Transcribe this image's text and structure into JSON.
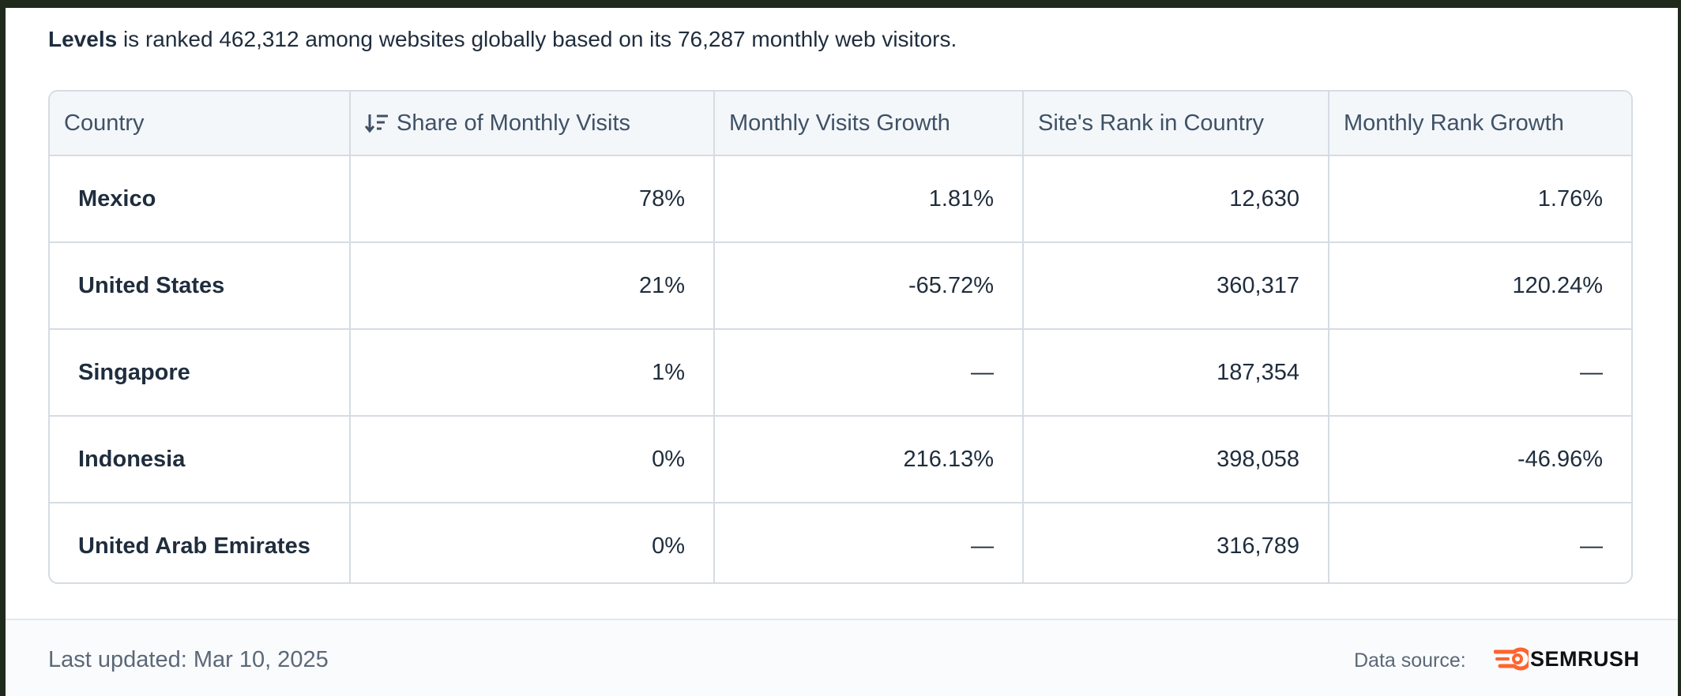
{
  "intro": {
    "site": "Levels",
    "text": "is ranked 462,312 among websites globally based on its 76,287 monthly web visitors."
  },
  "table": {
    "headers": [
      "Country",
      "Share of Monthly Visits",
      "Monthly Visits Growth",
      "Site's Rank in Country",
      "Monthly Rank Growth"
    ],
    "rows": [
      [
        "Mexico",
        "78%",
        "1.81%",
        "12,630",
        "1.76%"
      ],
      [
        "United States",
        "21%",
        "-65.72%",
        "360,317",
        "120.24%"
      ],
      [
        "Singapore",
        "1%",
        "—",
        "187,354",
        "—"
      ],
      [
        "Indonesia",
        "0%",
        "216.13%",
        "398,058",
        "-46.96%"
      ],
      [
        "United Arab Emirates",
        "0%",
        "—",
        "316,789",
        "—"
      ]
    ]
  },
  "footer": {
    "last_updated": "Last updated: Mar 10, 2025",
    "source_label": "Data source:",
    "source_name": "SEMRUSH"
  }
}
